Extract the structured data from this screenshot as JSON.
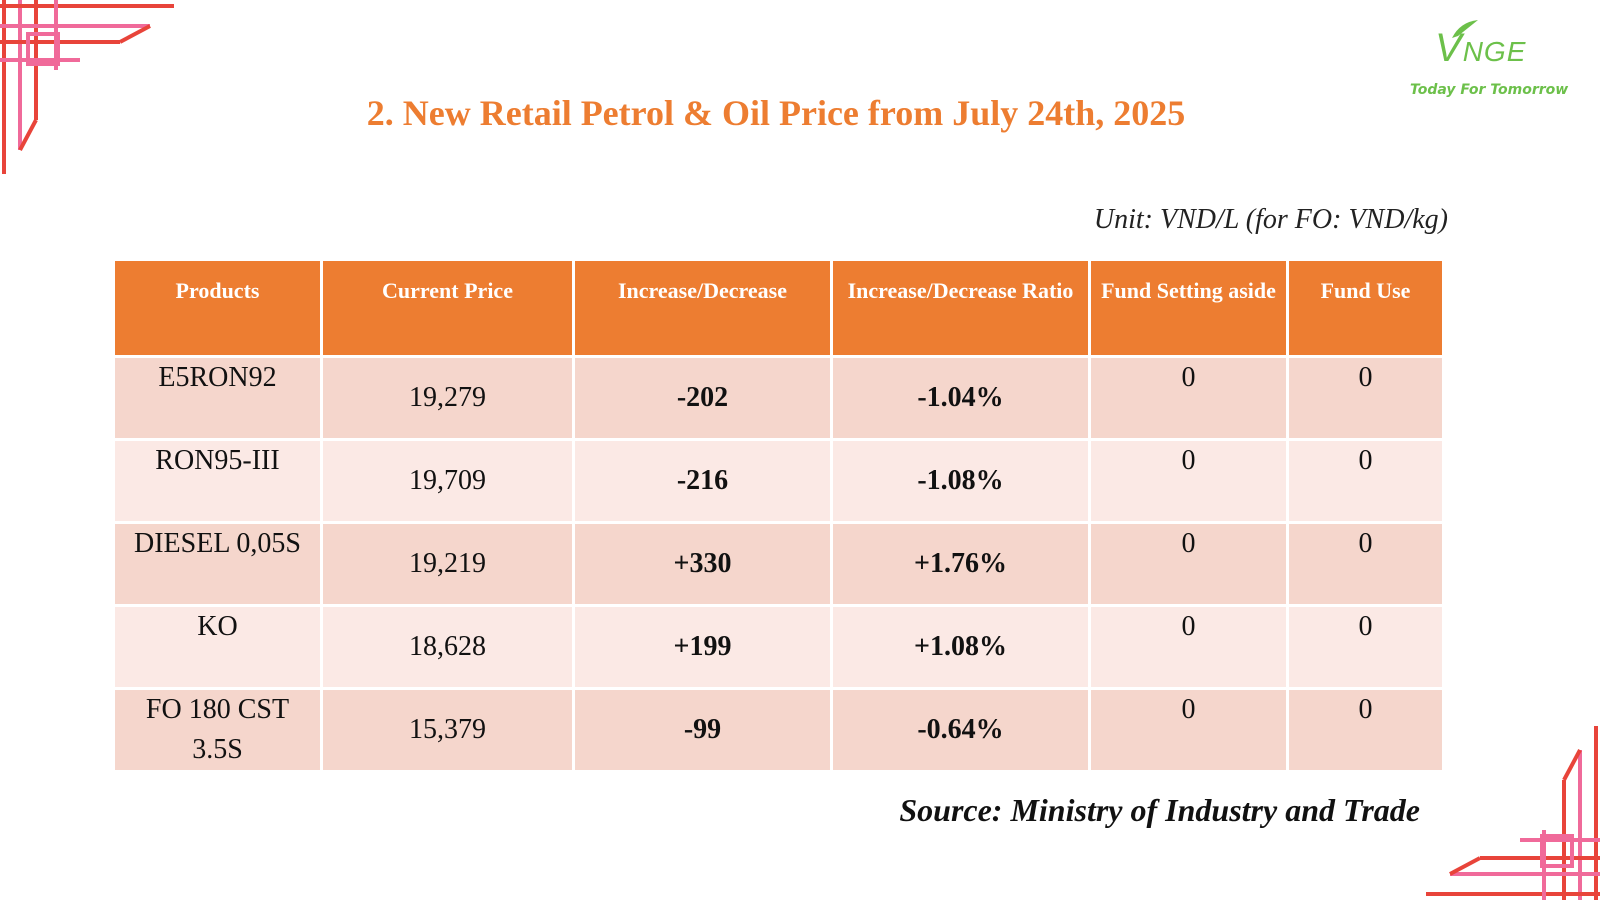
{
  "logo": {
    "mark_v": "V",
    "mark_rest": "NGE",
    "tagline": "Today For Tomorrow"
  },
  "title": "2. New Retail Petrol & Oil Price from July 24th, 2025",
  "unit": "Unit: VND/L (for FO: VND/kg)",
  "table": {
    "headers": [
      "Products",
      "Current Price",
      "Increase/Decrease",
      "Increase/Decrease Ratio",
      "Fund Setting aside",
      "Fund Use"
    ],
    "rows": [
      {
        "product": "E5RON92",
        "price": "19,279",
        "change": "-202",
        "ratio": "-1.04%",
        "fund_set": "0",
        "fund_use": "0",
        "direction": "down"
      },
      {
        "product": "RON95-III",
        "price": "19,709",
        "change": "-216",
        "ratio": "-1.08%",
        "fund_set": "0",
        "fund_use": "0",
        "direction": "down"
      },
      {
        "product": "DIESEL 0,05S",
        "price": "19,219",
        "change": "+330",
        "ratio": "+1.76%",
        "fund_set": "0",
        "fund_use": "0",
        "direction": "up"
      },
      {
        "product": "KO",
        "price": "18,628",
        "change": "+199",
        "ratio": "+1.08%",
        "fund_set": "0",
        "fund_use": "0",
        "direction": "up"
      },
      {
        "product": "FO 180 CST 3.5S",
        "price": "15,379",
        "change": "-99",
        "ratio": "-0.64%",
        "fund_set": "0",
        "fund_use": "0",
        "direction": "down"
      }
    ]
  },
  "source": "Source: Ministry of Industry and Trade",
  "colors": {
    "accent": "#ed7d31",
    "row_odd": "#f5d6cc",
    "row_even": "#fbe9e5",
    "negative": "#ff0000",
    "positive": "#1aa84a",
    "ornament_red": "#e8443a",
    "ornament_pink": "#f06a9a",
    "logo_green": "#6cc04a"
  }
}
